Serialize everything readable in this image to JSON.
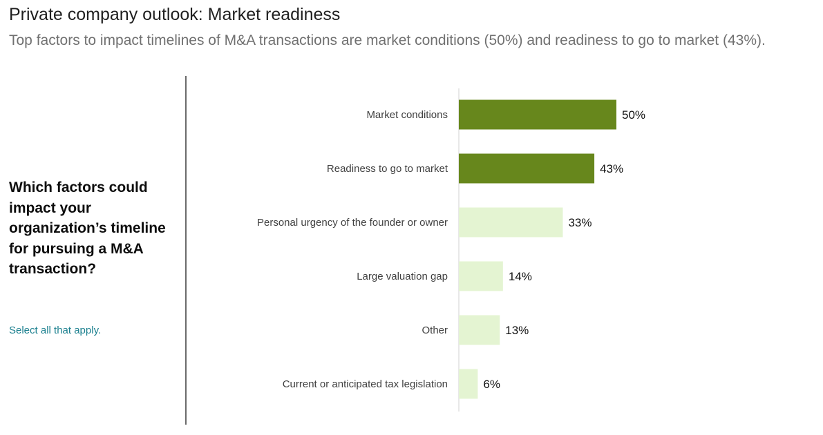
{
  "header": {
    "title": "Private company outlook: Market readiness",
    "subtitle": "Top factors to impact timelines of M&A transactions are market conditions (50%) and readiness to go to market (43%)."
  },
  "sidebar": {
    "question": "Which factors could impact your organization’s timeline for pursuing a M&A transaction?",
    "note": "Select all that apply."
  },
  "colors": {
    "highlight": "#67871c",
    "default": "#e4f4d2",
    "note_text": "#1a7f8e"
  },
  "chart_data": {
    "type": "bar",
    "orientation": "horizontal",
    "categories": [
      "Market conditions",
      "Readiness to go to market",
      "Personal urgency of the founder or owner",
      "Large valuation gap",
      "Other",
      "Current or anticipated tax legislation"
    ],
    "values": [
      50,
      43,
      33,
      14,
      13,
      6
    ],
    "value_labels": [
      "50%",
      "43%",
      "33%",
      "14%",
      "13%",
      "6%"
    ],
    "highlighted": [
      true,
      true,
      false,
      false,
      false,
      false
    ],
    "unit": "%",
    "xlim": [
      0,
      100
    ],
    "grid": false,
    "legend": "none"
  }
}
